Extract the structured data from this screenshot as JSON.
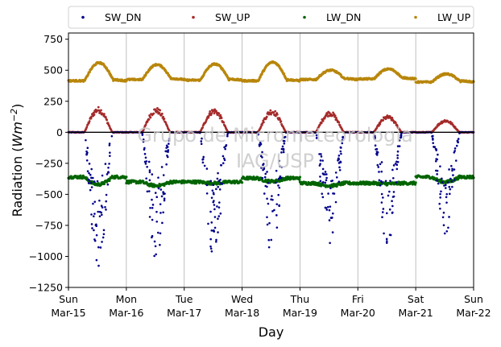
{
  "chart_data": {
    "type": "scatter",
    "xlabel": "Day",
    "ylabel_main": "Radiation (",
    "ylabel_unit": "Wm",
    "ylabel_exp": "−2",
    "ylabel_close": ")",
    "ylim": [
      -1250,
      800
    ],
    "yticks": [
      -1250,
      -1000,
      -750,
      -500,
      -250,
      0,
      250,
      500,
      750
    ],
    "ytick_labels": [
      "−1250",
      "−1000",
      "−750",
      "−500",
      "−250",
      "0",
      "250",
      "500",
      "750"
    ],
    "xlim_days": [
      0,
      7
    ],
    "xticks": [
      {
        "day": 0,
        "weekday": "Sun",
        "date": "Mar-15"
      },
      {
        "day": 1,
        "weekday": "Mon",
        "date": "Mar-16"
      },
      {
        "day": 2,
        "weekday": "Tue",
        "date": "Mar-17"
      },
      {
        "day": 3,
        "weekday": "Wed",
        "date": "Mar-18"
      },
      {
        "day": 4,
        "weekday": "Thu",
        "date": "Mar-19"
      },
      {
        "day": 5,
        "weekday": "Fri",
        "date": "Mar-20"
      },
      {
        "day": 6,
        "weekday": "Sat",
        "date": "Mar-21"
      },
      {
        "day": 7,
        "weekday": "Sun",
        "date": "Mar-22"
      }
    ],
    "grid": "vertical",
    "legend_placement": "top, outside plot",
    "watermark": [
      "Grupo de Micrometeorologia",
      "IAG/USP"
    ],
    "series": [
      {
        "name": "SW_DN",
        "color": "#00008b",
        "style": "scattered dots"
      },
      {
        "name": "SW_UP",
        "color": "#a52a2a",
        "style": "dense dots"
      },
      {
        "name": "LW_DN",
        "color": "#006400",
        "style": "dense dots"
      },
      {
        "name": "LW_UP",
        "color": "#b8860b",
        "style": "dense dots"
      }
    ],
    "daily_peaks": {
      "sw_dn_min": [
        -1080,
        -1040,
        -1040,
        -1000,
        -960,
        -920,
        -830
      ],
      "sw_up_max": [
        195,
        190,
        185,
        180,
        165,
        130,
        100
      ],
      "lw_up_max": [
        560,
        545,
        550,
        565,
        500,
        510,
        470
      ],
      "lw_up_night": [
        415,
        425,
        420,
        415,
        425,
        430,
        405
      ],
      "lw_dn_day": [
        -420,
        -430,
        -410,
        -395,
        -430,
        -415,
        -400
      ],
      "lw_dn_night": [
        -360,
        -400,
        -400,
        -370,
        -410,
        -410,
        -360
      ]
    }
  }
}
